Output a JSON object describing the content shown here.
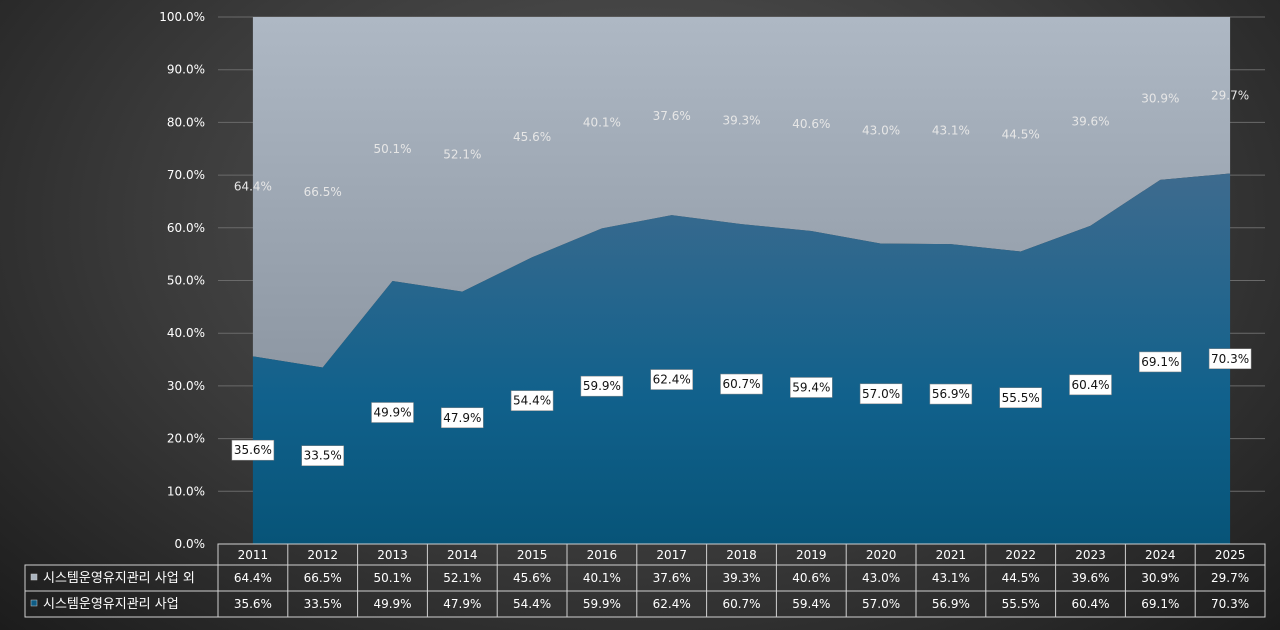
{
  "chart_data": {
    "type": "area",
    "stacked": true,
    "percent": true,
    "categories": [
      "2011",
      "2012",
      "2013",
      "2014",
      "2015",
      "2016",
      "2017",
      "2018",
      "2019",
      "2020",
      "2021",
      "2022",
      "2023",
      "2024",
      "2025"
    ],
    "series": [
      {
        "name": "시스템운영유지관리 사업 외",
        "color": "#aab4bf",
        "values": [
          64.4,
          66.5,
          50.1,
          52.1,
          45.6,
          40.1,
          37.6,
          39.3,
          40.6,
          43.0,
          43.1,
          44.5,
          39.6,
          30.9,
          29.7
        ],
        "labels": [
          "64.4%",
          "66.5%",
          "50.1%",
          "52.1%",
          "45.6%",
          "40.1%",
          "37.6%",
          "39.3%",
          "40.6%",
          "43.0%",
          "43.1%",
          "44.5%",
          "39.6%",
          "30.9%",
          "29.7%"
        ]
      },
      {
        "name": "시스템운영유지관리 사업",
        "color": "#0e5c85",
        "values": [
          35.6,
          33.5,
          49.9,
          47.9,
          54.4,
          59.9,
          62.4,
          60.7,
          59.4,
          57.0,
          56.9,
          55.5,
          60.4,
          69.1,
          70.3
        ],
        "labels": [
          "35.6%",
          "33.5%",
          "49.9%",
          "47.9%",
          "54.4%",
          "59.9%",
          "62.4%",
          "60.7%",
          "59.4%",
          "57.0%",
          "56.9%",
          "55.5%",
          "60.4%",
          "69.1%",
          "70.3%"
        ]
      }
    ],
    "ylim": [
      0,
      100
    ],
    "yticks": [
      "0.0%",
      "10.0%",
      "20.0%",
      "30.0%",
      "40.0%",
      "50.0%",
      "60.0%",
      "70.0%",
      "80.0%",
      "90.0%",
      "100.0%"
    ],
    "grid": true,
    "legend": "data-table-bottom"
  }
}
